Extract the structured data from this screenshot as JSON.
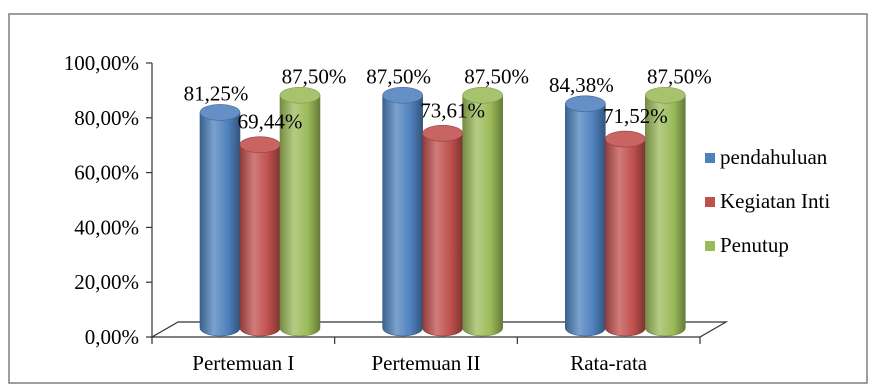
{
  "chart_data": {
    "type": "bar",
    "style": "3d-cylinder",
    "title": "",
    "xlabel": "",
    "ylabel": "",
    "categories": [
      "Pertemuan I",
      "Pertemuan II",
      "Rata-rata"
    ],
    "series": [
      {
        "name": "pendahuluan",
        "values": [
          81.25,
          87.5,
          84.38
        ],
        "labels": [
          "81,25%",
          "87,50%",
          "84,38%"
        ],
        "color": "#4F81BD"
      },
      {
        "name": "Kegiatan Inti",
        "values": [
          69.44,
          73.61,
          71.52
        ],
        "labels": [
          "69,44%",
          "73,61%",
          "71,52%"
        ],
        "color": "#C0504D"
      },
      {
        "name": "Penutup",
        "values": [
          87.5,
          87.5,
          87.5
        ],
        "labels": [
          "87,50%",
          "87,50%",
          "87,50%"
        ],
        "color": "#9BBB59"
      }
    ],
    "ylim": [
      0,
      100
    ],
    "yticks": [
      0,
      20,
      40,
      60,
      80,
      100
    ],
    "ytick_labels": [
      "0,00%",
      "20,00%",
      "40,00%",
      "60,00%",
      "80,00%",
      "100,00%"
    ],
    "grid": false,
    "legend_position": "right"
  }
}
